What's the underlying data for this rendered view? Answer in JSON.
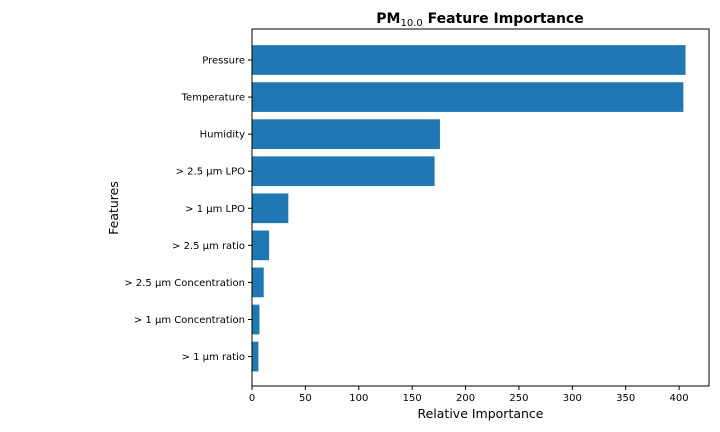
{
  "chart_data": {
    "type": "bar",
    "orientation": "horizontal",
    "title": "PM",
    "title_subscript": "10.0",
    "title_rest": " Feature Importance",
    "xlabel": "Relative Importance",
    "ylabel": "Features",
    "categories": [
      "Pressure",
      "Temperature",
      "Humidity",
      "> 2.5 µm LPO",
      "> 1 µm LPO",
      "> 2.5 µm ratio",
      "> 2.5 µm Concentration",
      "> 1 µm Concentration",
      "> 1 µm ratio"
    ],
    "values": [
      406,
      404,
      176,
      171,
      34,
      16,
      11,
      7,
      6
    ],
    "xlim": [
      0,
      428
    ],
    "xticks": [
      0,
      50,
      100,
      150,
      200,
      250,
      300,
      350,
      400
    ],
    "bar_color": "#1f77b4",
    "grid": false,
    "legend": "none"
  }
}
